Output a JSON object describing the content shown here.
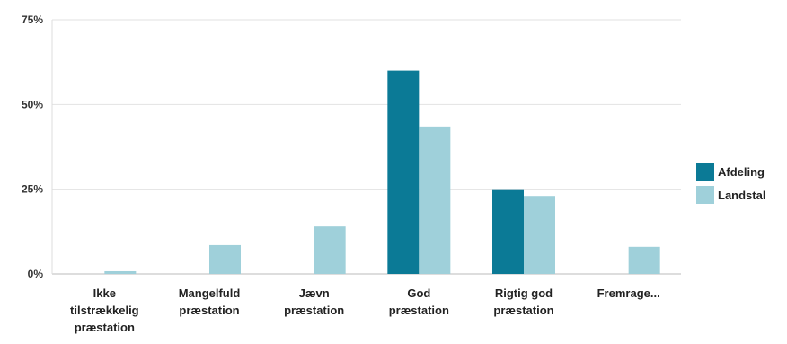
{
  "chart_data": {
    "type": "bar",
    "categories": [
      [
        "Ikke",
        "tilstrækkelig",
        "præstation"
      ],
      [
        "Mangelfuld",
        "præstation"
      ],
      [
        "Jævn",
        "præstation"
      ],
      [
        "God",
        "præstation"
      ],
      [
        "Rigtig god",
        "præstation"
      ],
      [
        "Fremrage..."
      ]
    ],
    "series": [
      {
        "name": "Afdeling",
        "color": "#0b7a96",
        "values": [
          0,
          0,
          0,
          60,
          25,
          0
        ]
      },
      {
        "name": "Landstal",
        "color": "#9fd0da",
        "values": [
          0.8,
          8.5,
          14,
          43.5,
          23,
          8
        ]
      }
    ],
    "yticks": [
      "0%",
      "25%",
      "50%",
      "75%"
    ],
    "ylim": [
      0,
      75
    ],
    "grid": true,
    "legend_position": "right"
  }
}
